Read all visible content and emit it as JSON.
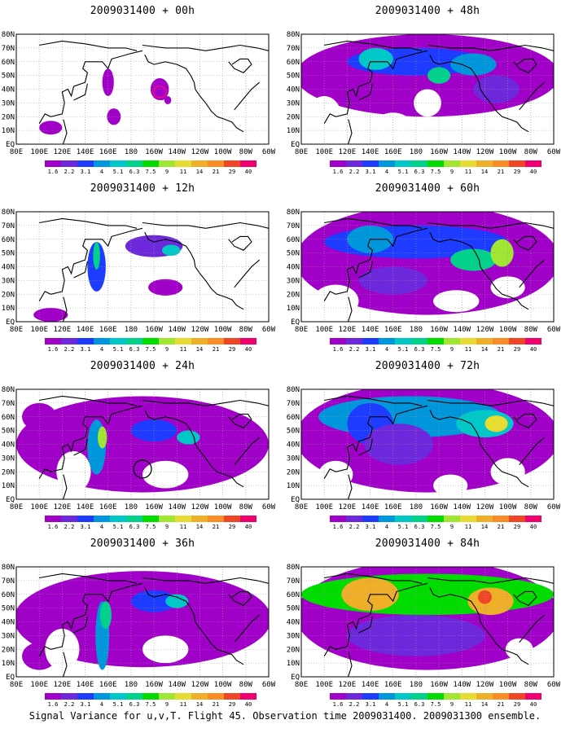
{
  "figure": {
    "caption": "Signal Variance for u,v,T. Flight 45. Observation time 2009031400. 2009031300 ensemble."
  },
  "colorbar": {
    "labels": [
      "1.6",
      "2.2",
      "3.1",
      "4",
      "5.1",
      "6.3",
      "7.5",
      "9",
      "11",
      "14",
      "21",
      "29",
      "40"
    ],
    "colors": [
      "#a000c8",
      "#6e28dc",
      "#1e3cff",
      "#0096dc",
      "#00c8c8",
      "#00d28c",
      "#00dc00",
      "#a0e632",
      "#e6dc32",
      "#f0af28",
      "#fa8c28",
      "#f04628",
      "#f0006e"
    ]
  },
  "axes": {
    "xtick_labels": [
      "80E",
      "100E",
      "120E",
      "140E",
      "160E",
      "180",
      "160W",
      "140W",
      "120W",
      "100W",
      "80W",
      "60W"
    ],
    "ytick_labels": [
      "EQ",
      "10N",
      "20N",
      "30N",
      "40N",
      "50N",
      "60N",
      "70N",
      "80N"
    ]
  },
  "chart_data": [
    {
      "type": "heatmap",
      "title": "2009031400 + 00h",
      "lead_hours": 0,
      "coverage": "sparse"
    },
    {
      "type": "heatmap",
      "title": "2009031400 + 48h",
      "lead_hours": 48,
      "coverage": "broad"
    },
    {
      "type": "heatmap",
      "title": "2009031400 + 12h",
      "lead_hours": 12,
      "coverage": "sparse"
    },
    {
      "type": "heatmap",
      "title": "2009031400 + 60h",
      "lead_hours": 60,
      "coverage": "broad"
    },
    {
      "type": "heatmap",
      "title": "2009031400 + 24h",
      "lead_hours": 24,
      "coverage": "moderate"
    },
    {
      "type": "heatmap",
      "title": "2009031400 + 72h",
      "lead_hours": 72,
      "coverage": "broad"
    },
    {
      "type": "heatmap",
      "title": "2009031400 + 36h",
      "lead_hours": 36,
      "coverage": "moderate"
    },
    {
      "type": "heatmap",
      "title": "2009031400 + 84h",
      "lead_hours": 84,
      "coverage": "near-full"
    }
  ]
}
